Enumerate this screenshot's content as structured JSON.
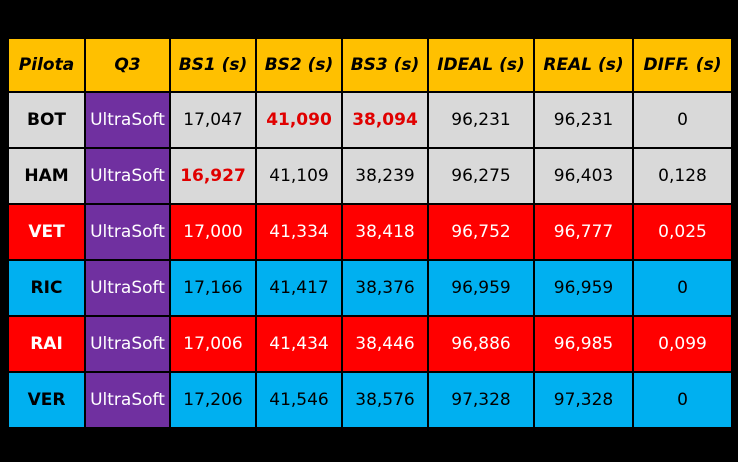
{
  "table": {
    "headers": [
      "Pilota",
      "Q3",
      "BS1 (s)",
      "BS2 (s)",
      "BS3 (s)",
      "IDEAL (s)",
      "REAL (s)",
      "DIFF. (s)"
    ],
    "rows": [
      {
        "pilot": "BOT",
        "tyre": "UltraSoft",
        "bs1": "17,047",
        "bs2": "41,090",
        "bs3": "38,094",
        "ideal": "96,231",
        "real": "96,231",
        "diff": "0",
        "row_color": "grey",
        "best": [
          "bs2",
          "bs3"
        ]
      },
      {
        "pilot": "HAM",
        "tyre": "UltraSoft",
        "bs1": "16,927",
        "bs2": "41,109",
        "bs3": "38,239",
        "ideal": "96,275",
        "real": "96,403",
        "diff": "0,128",
        "row_color": "grey",
        "best": [
          "bs1"
        ]
      },
      {
        "pilot": "VET",
        "tyre": "UltraSoft",
        "bs1": "17,000",
        "bs2": "41,334",
        "bs3": "38,418",
        "ideal": "96,752",
        "real": "96,777",
        "diff": "0,025",
        "row_color": "red",
        "best": []
      },
      {
        "pilot": "RIC",
        "tyre": "UltraSoft",
        "bs1": "17,166",
        "bs2": "41,417",
        "bs3": "38,376",
        "ideal": "96,959",
        "real": "96,959",
        "diff": "0",
        "row_color": "blue",
        "best": []
      },
      {
        "pilot": "RAI",
        "tyre": "UltraSoft",
        "bs1": "17,006",
        "bs2": "41,434",
        "bs3": "38,446",
        "ideal": "96,886",
        "real": "96,985",
        "diff": "0,099",
        "row_color": "red",
        "best": []
      },
      {
        "pilot": "VER",
        "tyre": "UltraSoft",
        "bs1": "17,206",
        "bs2": "41,546",
        "bs3": "38,576",
        "ideal": "97,328",
        "real": "97,328",
        "diff": "0",
        "row_color": "blue",
        "best": []
      }
    ]
  },
  "colors": {
    "header": "#ffc000",
    "tyre_ultrasoft": "#7030a0",
    "grey_row": "#d9d9d9",
    "red_row": "#ff0000",
    "blue_row": "#00b0f0",
    "best_sector_text": "#e00000"
  }
}
